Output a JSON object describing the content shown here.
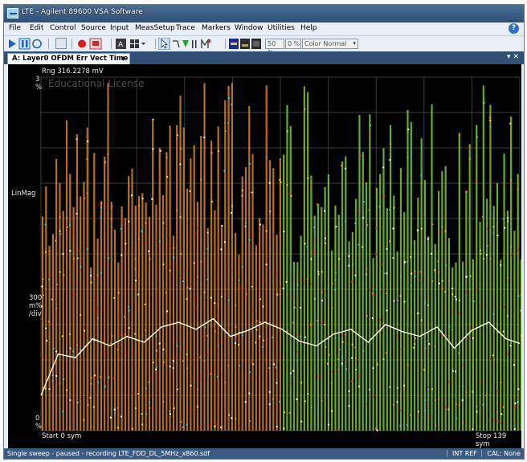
{
  "window": {
    "title": "LTE - Agilent 89600 VSA Software"
  },
  "menu": [
    "File",
    "Edit",
    "Control",
    "Source",
    "Input",
    "MeasSetup",
    "Trace",
    "Markers",
    "Window",
    "Utilities",
    "Help"
  ],
  "toolbar": {
    "zoom_value": "50 %",
    "offset_value": "0 %",
    "color_mode": "Color Normal"
  },
  "tab": {
    "label": "A: Layer0 OFDM Err Vect Time"
  },
  "trace": {
    "range_label": "Rng 316.2278 mV",
    "top_value": "3",
    "top_unit": "%",
    "watermark": "Educational License",
    "scale_type": "LinMag",
    "per_div_value": "300",
    "per_div_unit": "m%",
    "per_div_suffix": "/div",
    "bottom_value": "0",
    "bottom_unit": "%",
    "start_label": "Start 0  sym",
    "stop_label": "Stop 139  sym"
  },
  "colors": {
    "background": "#000000",
    "grid": "#3a3a3a",
    "orange_trace": "#d8842a",
    "green_trace": "#7dc832",
    "average_line": "#ffffff"
  },
  "status": {
    "text": "Single sweep - paused - recording LTE_FDD_DL_5MHz_x860.sdf",
    "reference": "INT REF",
    "calibration": "CAL: None"
  },
  "chart_data": {
    "type": "line",
    "x_label_start": "Start 0  sym",
    "x_label_stop": "Stop 139  sym",
    "xlim": [
      0,
      139
    ],
    "ylim": [
      0,
      3
    ],
    "y_unit": "%",
    "grid": true,
    "series": [
      {
        "name": "",
        "role": "average",
        "x": [
          0,
          5,
          10,
          15,
          20,
          25,
          30,
          35,
          40,
          45,
          50,
          55,
          60,
          65,
          70,
          75,
          80,
          85,
          90,
          95,
          100,
          105,
          110,
          115,
          120,
          125,
          130,
          135,
          139
        ],
        "values": [
          0.3,
          0.65,
          0.62,
          0.78,
          0.72,
          0.8,
          0.75,
          0.88,
          0.92,
          0.86,
          0.95,
          0.8,
          0.85,
          0.92,
          0.86,
          0.76,
          0.72,
          0.82,
          0.86,
          0.75,
          0.9,
          0.84,
          0.8,
          0.88,
          0.7,
          0.85,
          0.92,
          0.78,
          0.74
        ]
      }
    ]
  }
}
